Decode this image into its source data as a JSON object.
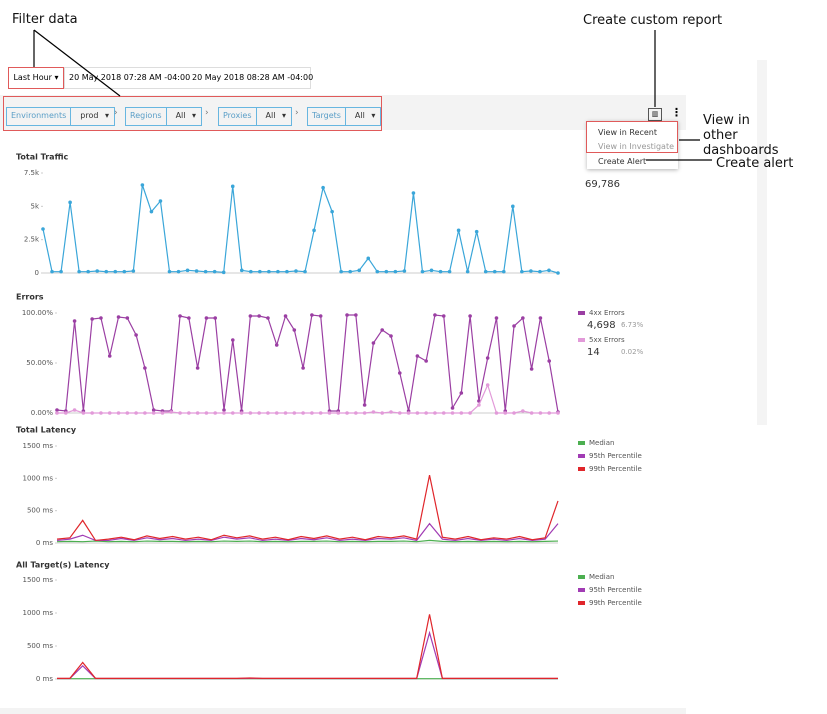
{
  "annotations": {
    "filter_data": "Filter data",
    "custom_report": "Create custom report",
    "other_dashboards": "View in other dashboards",
    "create_alert": "Create alert"
  },
  "toolbar": {
    "range": "Last Hour",
    "start": "20 May 2018 07:28 AM -04:00",
    "end": "20 May 2018 08:28 AM -04:00"
  },
  "filters": [
    {
      "label": "Environments",
      "value": "prod"
    },
    {
      "label": "Regions",
      "value": "All"
    },
    {
      "label": "Proxies",
      "value": "All"
    },
    {
      "label": "Targets",
      "value": "All"
    }
  ],
  "menu": [
    "View in Recent",
    "View in Investigate",
    "Create Alert"
  ],
  "charts": [
    {
      "type": "line",
      "title": "Total Traffic",
      "total": "69,786",
      "markers": true,
      "ylim": [
        0,
        7500
      ],
      "yticks": [
        0,
        {
          "value": 2500,
          "label": "2.5k"
        },
        {
          "value": 5000,
          "label": "5k"
        },
        {
          "value": 7500,
          "label": "7.5k"
        }
      ],
      "series": [
        {
          "color": "#3aa6d9",
          "values": [
            3300,
            100,
            100,
            5300,
            100,
            100,
            150,
            100,
            100,
            100,
            150,
            6600,
            4600,
            5400,
            100,
            100,
            200,
            150,
            100,
            100,
            50,
            6500,
            200,
            100,
            100,
            100,
            100,
            100,
            150,
            100,
            3200,
            6400,
            4600,
            100,
            100,
            200,
            1100,
            100,
            100,
            100,
            150,
            6000,
            100,
            200,
            100,
            100,
            3200,
            100,
            3100,
            100,
            100,
            100,
            5000,
            100,
            150,
            100,
            200,
            0
          ]
        }
      ]
    },
    {
      "type": "line",
      "title": "Errors",
      "markers": true,
      "ylim": [
        0,
        100
      ],
      "yticks": [
        {
          "value": 0,
          "label": "0.00%"
        },
        {
          "value": 50,
          "label": "50.00%"
        },
        {
          "value": 100,
          "label": "100.00%"
        }
      ],
      "series": [
        {
          "name": "4xx Errors",
          "total": "4,698",
          "share": "6.73%",
          "color": "#9b3fa3",
          "values": [
            3,
            2,
            92,
            2,
            94,
            95,
            57,
            96,
            95,
            78,
            45,
            3,
            2,
            2,
            97,
            95,
            45,
            95,
            95,
            3,
            73,
            2,
            97,
            97,
            95,
            68,
            97,
            83,
            45,
            98,
            97,
            2,
            2,
            98,
            98,
            8,
            70,
            83,
            77,
            40,
            2,
            57,
            52,
            98,
            97,
            5,
            20,
            97,
            12,
            55,
            95,
            2,
            87,
            95,
            44,
            95,
            52,
            1
          ]
        },
        {
          "name": "5xx Errors",
          "total": "14",
          "share": "0.02%",
          "color": "#e29ad9",
          "values": [
            0,
            0,
            3,
            0,
            0,
            0,
            0,
            0,
            0,
            0,
            0,
            0,
            0,
            1,
            0,
            0,
            0,
            0,
            0,
            0,
            0,
            0,
            0,
            0,
            0,
            0,
            0,
            0,
            0,
            0,
            0,
            0,
            0,
            0,
            0,
            0,
            1,
            0,
            1,
            0,
            0,
            0,
            0,
            0,
            0,
            0,
            0,
            0,
            8,
            28,
            0,
            0,
            0,
            2,
            0,
            0,
            0,
            0
          ]
        }
      ]
    },
    {
      "type": "line",
      "title": "Total Latency",
      "ylim": [
        0,
        1500
      ],
      "yticks": [
        {
          "value": 0,
          "label": "0 ms"
        },
        {
          "value": 500,
          "label": "500 ms"
        },
        {
          "value": 1000,
          "label": "1000 ms"
        },
        {
          "value": 1500,
          "label": "1500 ms"
        }
      ],
      "series": [
        {
          "name": "Median",
          "color": "#4caf50",
          "values": [
            20,
            25,
            20,
            30,
            20,
            25,
            20,
            30,
            25,
            25,
            20,
            25,
            20,
            30,
            25,
            30,
            20,
            25,
            20,
            25,
            25,
            30,
            20,
            25,
            20,
            25,
            25,
            30,
            20,
            40,
            25,
            20,
            25,
            20,
            25,
            20,
            25,
            20,
            25,
            30
          ]
        },
        {
          "name": "95th Percentile",
          "color": "#a13cb4",
          "values": [
            40,
            60,
            120,
            40,
            40,
            70,
            40,
            80,
            50,
            70,
            40,
            60,
            40,
            90,
            60,
            80,
            40,
            60,
            40,
            70,
            50,
            80,
            40,
            60,
            40,
            70,
            60,
            80,
            40,
            300,
            60,
            40,
            70,
            40,
            60,
            40,
            70,
            40,
            60,
            300
          ]
        },
        {
          "name": "99th Percentile",
          "color": "#e0262b",
          "values": [
            60,
            80,
            350,
            40,
            60,
            90,
            50,
            110,
            70,
            100,
            60,
            90,
            50,
            120,
            80,
            110,
            60,
            90,
            50,
            100,
            70,
            110,
            60,
            90,
            50,
            100,
            80,
            110,
            60,
            1050,
            90,
            60,
            100,
            50,
            80,
            60,
            100,
            50,
            80,
            650
          ]
        }
      ]
    },
    {
      "type": "line",
      "title": "All Target(s) Latency",
      "ylim": [
        0,
        1500
      ],
      "yticks": [
        {
          "value": 0,
          "label": "0 ms"
        },
        {
          "value": 500,
          "label": "500 ms"
        },
        {
          "value": 1000,
          "label": "1000 ms"
        },
        {
          "value": 1500,
          "label": "1500 ms"
        }
      ],
      "series": [
        {
          "name": "Median",
          "color": "#4caf50",
          "values": [
            5,
            5,
            5,
            5,
            5,
            5,
            5,
            5,
            5,
            5,
            5,
            5,
            5,
            5,
            5,
            5,
            5,
            5,
            5,
            5,
            5,
            5,
            5,
            5,
            5,
            5,
            5,
            5,
            5,
            5,
            5,
            5,
            5,
            5,
            5,
            5,
            5,
            5,
            5,
            5
          ]
        },
        {
          "name": "95th Percentile",
          "color": "#a13cb4",
          "values": [
            8,
            8,
            200,
            8,
            8,
            8,
            8,
            8,
            8,
            8,
            8,
            8,
            8,
            8,
            8,
            10,
            8,
            8,
            8,
            8,
            8,
            8,
            8,
            8,
            8,
            8,
            8,
            8,
            8,
            700,
            8,
            8,
            8,
            8,
            8,
            8,
            8,
            8,
            8,
            8
          ]
        },
        {
          "name": "99th Percentile",
          "color": "#e0262b",
          "values": [
            10,
            10,
            250,
            10,
            10,
            10,
            10,
            10,
            10,
            10,
            10,
            10,
            10,
            10,
            10,
            15,
            10,
            10,
            10,
            10,
            10,
            10,
            10,
            10,
            10,
            10,
            10,
            10,
            10,
            980,
            10,
            10,
            10,
            10,
            10,
            10,
            10,
            10,
            10,
            10
          ]
        }
      ]
    }
  ]
}
